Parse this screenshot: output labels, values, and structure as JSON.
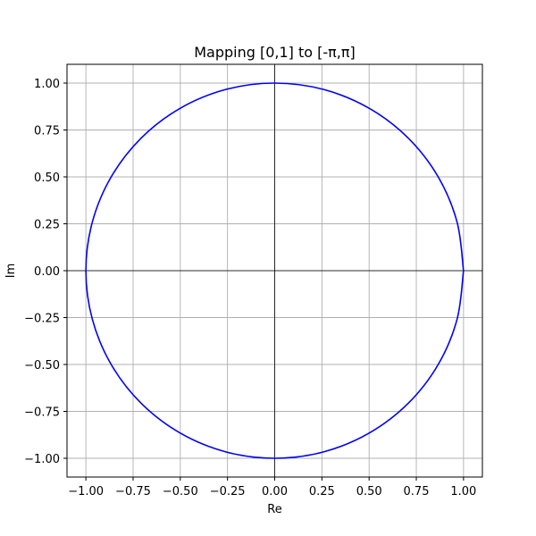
{
  "chart_data": {
    "type": "line",
    "title": "Mapping [0,1] to [-π,π]",
    "xlabel": "Re",
    "ylabel": "Im",
    "xlim": [
      -1.1,
      1.1
    ],
    "ylim": [
      -1.1,
      1.1
    ],
    "x_ticks": [
      -1.0,
      -0.75,
      -0.5,
      -0.25,
      0.0,
      0.25,
      0.5,
      0.75,
      1.0
    ],
    "y_ticks": [
      -1.0,
      -0.75,
      -0.5,
      -0.25,
      0.0,
      0.25,
      0.5,
      0.75,
      1.0
    ],
    "x_tick_labels": [
      "−1.00",
      "−0.75",
      "−0.50",
      "−0.25",
      "0.00",
      "0.25",
      "0.50",
      "0.75",
      "1.00"
    ],
    "y_tick_labels": [
      "−1.00",
      "−0.75",
      "−0.50",
      "−0.25",
      "0.00",
      "0.25",
      "0.50",
      "0.75",
      "1.00"
    ],
    "grid": true,
    "reference_lines": {
      "x": 0,
      "y": 0,
      "color": "#000000"
    },
    "series": [
      {
        "color": "#0000ff",
        "x": [
          1.0,
          0.9659,
          0.866,
          0.7071,
          0.5,
          0.2588,
          0.0,
          -0.2588,
          -0.5,
          -0.7071,
          -0.866,
          -0.9659,
          -1.0,
          -0.9659,
          -0.866,
          -0.7071,
          -0.5,
          -0.2588,
          0.0,
          0.2588,
          0.5,
          0.7071,
          0.866,
          0.9659,
          1.0
        ],
        "y": [
          0.0,
          0.2588,
          0.5,
          0.7071,
          0.866,
          0.9659,
          1.0,
          0.9659,
          0.866,
          0.7071,
          0.5,
          0.2588,
          0.0,
          -0.2588,
          -0.5,
          -0.7071,
          -0.866,
          -0.9659,
          -1.0,
          -0.9659,
          -0.866,
          -0.7071,
          -0.5,
          -0.2588,
          0.0
        ]
      }
    ]
  }
}
